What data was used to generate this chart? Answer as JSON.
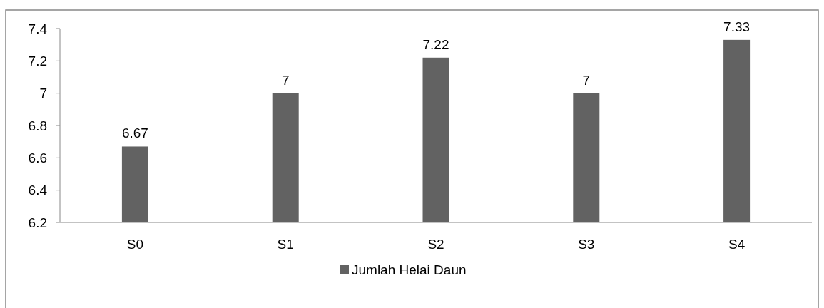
{
  "chart_data": {
    "type": "bar",
    "categories": [
      "S0",
      "S1",
      "S2",
      "S3",
      "S4"
    ],
    "series": [
      {
        "name": "Jumlah Helai Daun",
        "color": "#626262",
        "values": [
          6.67,
          7,
          7.22,
          7,
          7.33
        ]
      }
    ],
    "ylim": [
      6.2,
      7.4
    ],
    "yticks": [
      6.2,
      6.4,
      6.6,
      6.8,
      7,
      7.2,
      7.4
    ],
    "data_labels": true,
    "legend": "bottom",
    "grid": false
  }
}
